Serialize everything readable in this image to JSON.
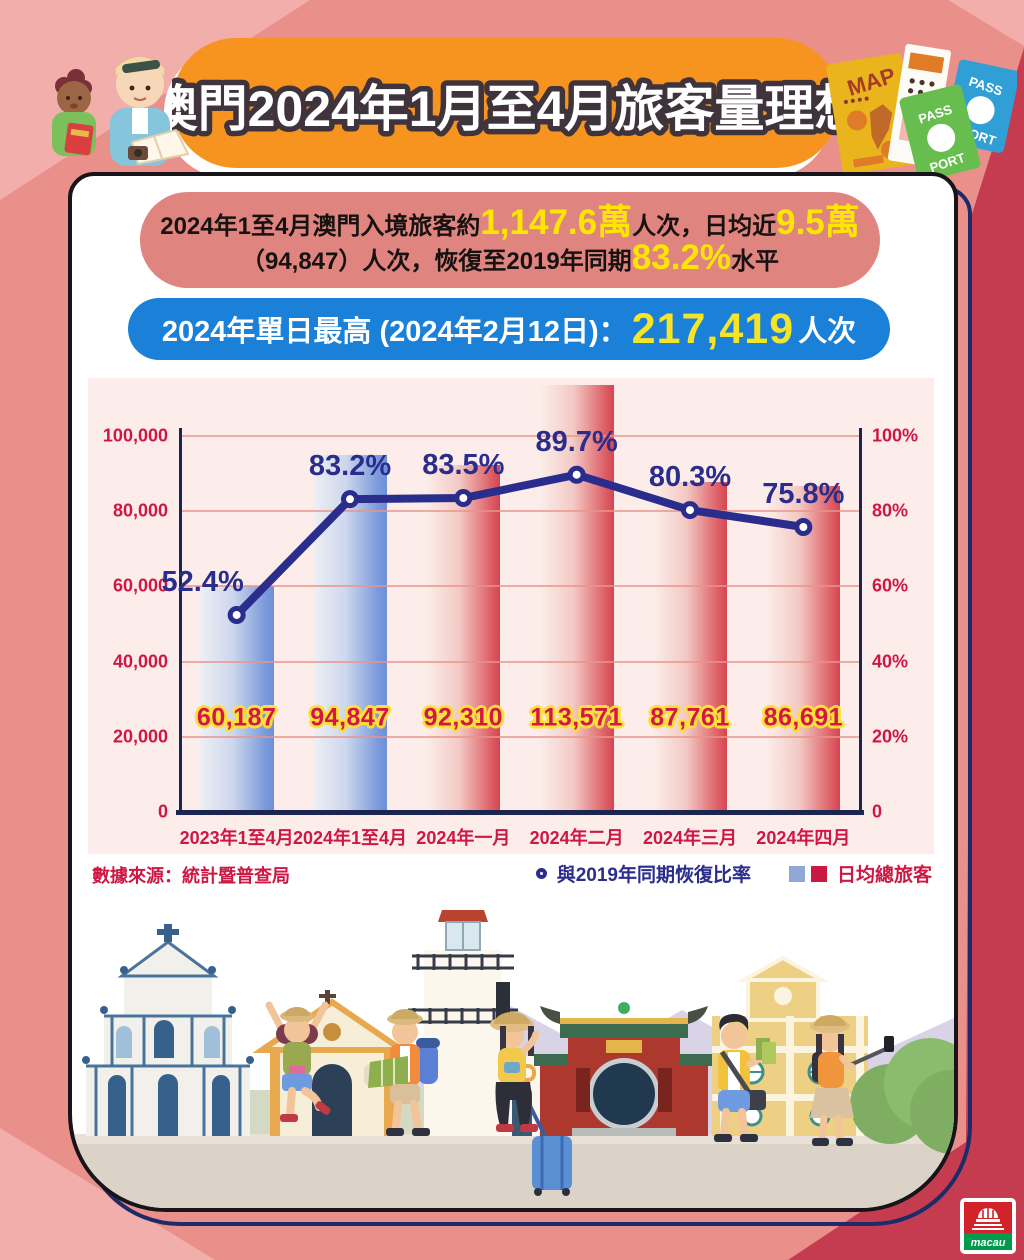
{
  "title": "澳門2024年1月至4月旅客量理想",
  "summary": {
    "l1a": "2024年1至4月澳門入境旅客約",
    "l1b": "1,147.6萬",
    "l1c": "人次，日均近",
    "l1d": "9.5萬",
    "l2a": "（94,847）人次，恢復至2019年同期",
    "l2b": "83.2%",
    "l2c": "水平"
  },
  "highlight": {
    "prefix": "2024年單日最高 (2024年2月12日)：",
    "value": "217,419",
    "suffix": "人次"
  },
  "chart_data": {
    "type": "bar+line",
    "categories": [
      "2023年1至4月",
      "2024年1至4月",
      "2024年一月",
      "2024年二月",
      "2024年三月",
      "2024年四月"
    ],
    "series": [
      {
        "name": "日均總旅客",
        "type": "bar",
        "values": [
          60187,
          94847,
          92310,
          113571,
          87761,
          86691
        ],
        "labels": [
          "60,187",
          "94,847",
          "92,310",
          "113,571",
          "87,761",
          "86,691"
        ],
        "bar_styles": [
          "blue",
          "blue",
          "red",
          "red",
          "red",
          "red"
        ]
      },
      {
        "name": "與2019年同期恢復比率",
        "type": "line",
        "values": [
          52.4,
          83.2,
          83.5,
          89.7,
          80.3,
          75.8
        ],
        "labels": [
          "52.4%",
          "83.2%",
          "83.5%",
          "89.7%",
          "80.3%",
          "75.8%"
        ]
      }
    ],
    "left_axis": {
      "min": 0,
      "max": 100000,
      "ticks": [
        "100,000",
        "80,000",
        "60,000",
        "40,000",
        "20,000",
        "0"
      ]
    },
    "right_axis": {
      "min": 0,
      "max": 100,
      "ticks": [
        "100%",
        "80%",
        "60%",
        "40%",
        "20%",
        "0"
      ]
    },
    "grid": true,
    "legend_position": "bottom-right",
    "colors": {
      "bar_blue": "#6d90d6",
      "bar_red": "#d6454f",
      "line": "#2b2d8c",
      "axis": "#1c2550",
      "tick_text": "#ce1743",
      "value_text": "#d31845",
      "value_outline": "#ffdf3d",
      "panel_bg": "#fcedea"
    }
  },
  "source": "數據來源：統計暨普查局",
  "legend": {
    "line": "與2019年同期恢復比率",
    "bar": "日均總旅客"
  },
  "decor": {
    "map": "MAP",
    "pass": "PASS",
    "port": "PORT",
    "logo": "macau"
  },
  "colors": {
    "background": "#e9908b",
    "accent_dark_red": "#c53c51",
    "banner_orange": "#f79420",
    "statbox_salmon": "#e08480",
    "pill_blue": "#1a80d8",
    "highlight_yellow": "#ffe600"
  }
}
